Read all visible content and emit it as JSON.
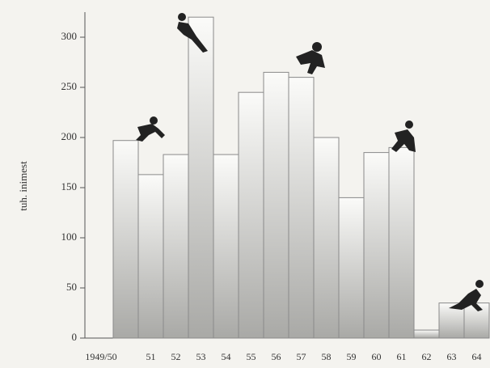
{
  "chart_data": {
    "type": "bar",
    "y_label": "tuh. inimest",
    "categories": [
      "1949/50",
      "51",
      "52",
      "53",
      "54",
      "55",
      "56",
      "57",
      "58",
      "59",
      "60",
      "61",
      "62",
      "63",
      "64"
    ],
    "values": [
      197,
      163,
      183,
      320,
      183,
      245,
      265,
      260,
      200,
      140,
      185,
      190,
      8,
      35,
      35
    ],
    "color": "#8a8a8a",
    "ylim": [
      0,
      325
    ],
    "yticks": [
      0,
      50,
      100,
      150,
      200,
      250,
      300
    ]
  }
}
